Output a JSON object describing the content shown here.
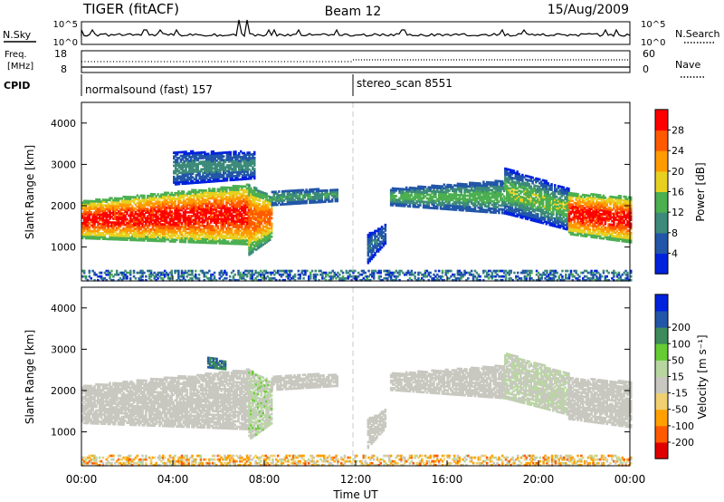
{
  "header": {
    "title": "TIGER (fitACF)",
    "beam": "Beam 12",
    "date": "15/Aug/2009"
  },
  "strips": {
    "nsky": {
      "label": "N.Sky",
      "ticks": [
        "10^5",
        "10^0"
      ]
    },
    "nsearch": {
      "label": "N.Search",
      "ticks": [
        "10^5",
        "10^0"
      ]
    },
    "freq": {
      "label_line1": "Freq.",
      "label_line2": "[MHz]",
      "ticks": [
        "18",
        "8"
      ]
    },
    "nave": {
      "label": "Nave",
      "ticks": [
        "60",
        "0"
      ]
    },
    "cpid": {
      "label": "CPID",
      "segments": [
        {
          "name": "normalsound (fast) 157",
          "start_hour": 0,
          "end_hour": 12
        },
        {
          "name": "stereo_scan 8551",
          "start_hour": 12,
          "end_hour": 24
        }
      ]
    }
  },
  "colors": {
    "power_scale": [
      "#0022dd",
      "#2256a8",
      "#3d8a7a",
      "#4caf50",
      "#e8d020",
      "#ff9a00",
      "#ff5a00",
      "#ff0000"
    ],
    "velocity_scale": [
      "#e00000",
      "#ff5a00",
      "#ffa000",
      "#f0d070",
      "#c8c8c0",
      "#b8d7a0",
      "#66cc33",
      "#3d8a5a",
      "#2256a8",
      "#0022dd"
    ]
  },
  "chart_data": [
    {
      "type": "heatmap",
      "name": "power",
      "xlabel": "",
      "ylabel": "Slant Range [km]",
      "xlim": [
        0,
        24
      ],
      "ylim": [
        180,
        4500
      ],
      "yticks": [
        "1000",
        "2000",
        "3000",
        "4000"
      ],
      "colorbar": {
        "label": "Power [dB]",
        "ticks": [
          "4",
          "8",
          "12",
          "16",
          "20",
          "24",
          "28"
        ],
        "range": [
          0,
          30
        ]
      },
      "bands": [
        {
          "t0": 0.0,
          "t1": 7.3,
          "rlo0": 1200,
          "rlo1": 1050,
          "rhi0": 2100,
          "rhi1": 2500,
          "pmin": 12,
          "pmax": 30
        },
        {
          "t0": 4.0,
          "t1": 7.6,
          "rlo0": 2500,
          "rlo1": 2650,
          "rhi0": 3300,
          "rhi1": 3300,
          "pmin": 2,
          "pmax": 10
        },
        {
          "t0": 7.3,
          "t1": 8.3,
          "rlo0": 800,
          "rlo1": 1200,
          "rhi0": 2500,
          "rhi1": 2200,
          "pmin": 10,
          "pmax": 26
        },
        {
          "t0": 8.3,
          "t1": 11.2,
          "rlo0": 2000,
          "rlo1": 2100,
          "rhi0": 2350,
          "rhi1": 2400,
          "pmin": 4,
          "pmax": 12
        },
        {
          "t0": 12.5,
          "t1": 13.3,
          "rlo0": 600,
          "rlo1": 1100,
          "rhi0": 1300,
          "rhi1": 1550,
          "pmin": 2,
          "pmax": 8
        },
        {
          "t0": 13.5,
          "t1": 18.5,
          "rlo0": 2000,
          "rlo1": 1800,
          "rhi0": 2400,
          "rhi1": 2600,
          "pmin": 4,
          "pmax": 14
        },
        {
          "t0": 18.5,
          "t1": 21.3,
          "rlo0": 1800,
          "rlo1": 1400,
          "rhi0": 2900,
          "rhi1": 2400,
          "pmin": 2,
          "pmax": 16
        },
        {
          "t0": 21.3,
          "t1": 24.0,
          "rlo0": 1300,
          "rlo1": 1100,
          "rhi0": 2300,
          "rhi1": 2200,
          "pmin": 12,
          "pmax": 30
        }
      ],
      "ground_band": {
        "rlo": 180,
        "rhi": 450,
        "pmin": 2,
        "pmax": 12
      }
    },
    {
      "type": "heatmap",
      "name": "velocity",
      "xlabel": "Time UT",
      "ylabel": "Slant Range [km]",
      "xlim": [
        0,
        24
      ],
      "ylim": [
        180,
        4500
      ],
      "xticks": [
        "00:00",
        "04:00",
        "08:00",
        "12:00",
        "16:00",
        "20:00",
        "00:00"
      ],
      "yticks": [
        "1000",
        "2000",
        "3000",
        "4000"
      ],
      "colorbar": {
        "label": "Velocity [m s⁻¹]",
        "ticks": [
          "-200",
          "-100",
          "-50",
          "-15",
          "15",
          "50",
          "100",
          "200"
        ],
        "range": [
          -250,
          250
        ]
      },
      "bands": [
        {
          "t0": 0.0,
          "t1": 7.3,
          "rlo0": 1200,
          "rlo1": 1050,
          "rhi0": 2100,
          "rhi1": 2500,
          "vmin": -14,
          "vmax": 14
        },
        {
          "t0": 5.5,
          "t1": 6.3,
          "rlo0": 2550,
          "rlo1": 2500,
          "rhi0": 2800,
          "rhi1": 2700,
          "vmin": 150,
          "vmax": 240
        },
        {
          "t0": 7.3,
          "t1": 8.3,
          "rlo0": 800,
          "rlo1": 1200,
          "rhi0": 2500,
          "rhi1": 2200,
          "vmin": -15,
          "vmax": 60
        },
        {
          "t0": 8.3,
          "t1": 11.2,
          "rlo0": 2000,
          "rlo1": 2100,
          "rhi0": 2350,
          "rhi1": 2400,
          "vmin": -14,
          "vmax": 14
        },
        {
          "t0": 12.5,
          "t1": 13.3,
          "rlo0": 600,
          "rlo1": 1100,
          "rhi0": 1300,
          "rhi1": 1550,
          "vmin": -14,
          "vmax": 14
        },
        {
          "t0": 13.5,
          "t1": 18.5,
          "rlo0": 2000,
          "rlo1": 1800,
          "rhi0": 2400,
          "rhi1": 2600,
          "vmin": -14,
          "vmax": 14
        },
        {
          "t0": 18.5,
          "t1": 21.3,
          "rlo0": 1800,
          "rlo1": 1400,
          "rhi0": 2900,
          "rhi1": 2400,
          "vmin": -10,
          "vmax": 40
        },
        {
          "t0": 21.3,
          "t1": 24.0,
          "rlo0": 1300,
          "rlo1": 1100,
          "rhi0": 2300,
          "rhi1": 2200,
          "vmin": -14,
          "vmax": 14
        }
      ],
      "ground_band": {
        "rlo": 180,
        "rhi": 450,
        "vmin": -120,
        "vmax": 40
      }
    }
  ]
}
